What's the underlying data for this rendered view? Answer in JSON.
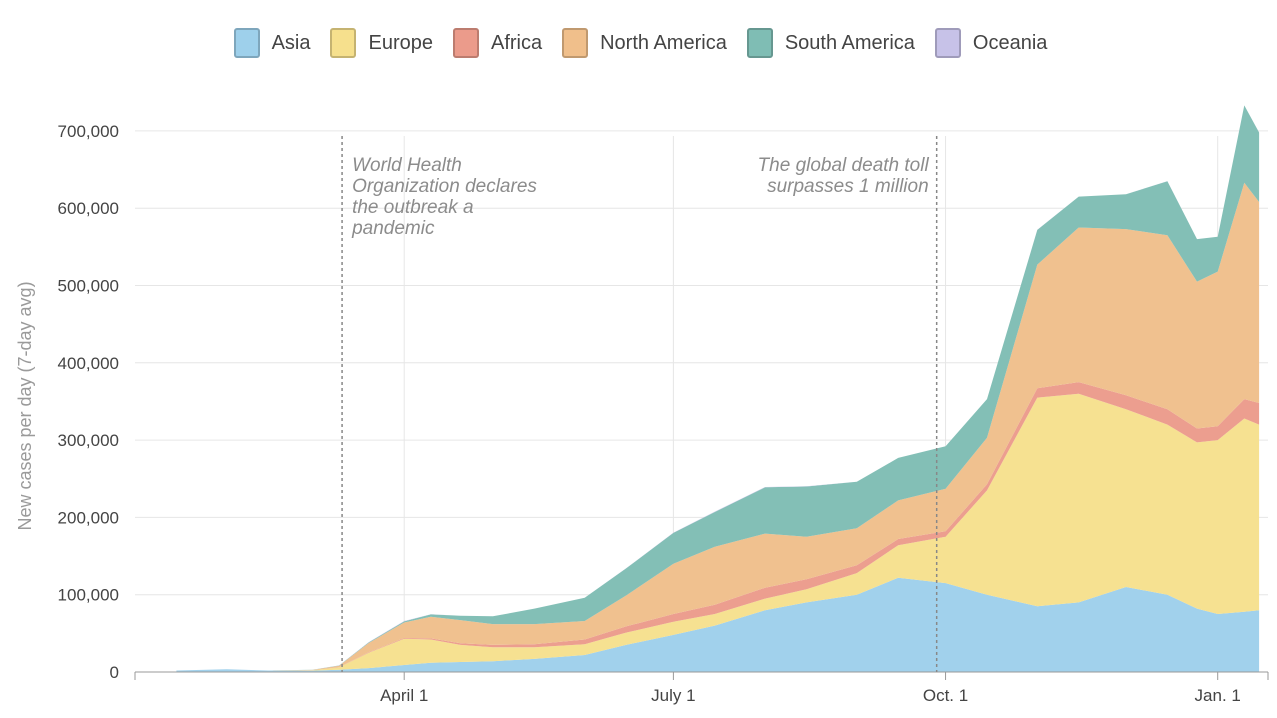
{
  "chart_data": {
    "type": "area",
    "stacked": true,
    "title": "",
    "xlabel": "",
    "ylabel": "New cases per day (7-day avg)",
    "ylim": [
      0,
      740000
    ],
    "yticks": [
      0,
      100000,
      200000,
      300000,
      400000,
      500000,
      600000,
      700000
    ],
    "ytick_labels": [
      "0",
      "100,000",
      "200,000",
      "300,000",
      "400,000",
      "500,000",
      "600,000",
      "700,000"
    ],
    "xlim": [
      "2020-01-01",
      "2021-01-18"
    ],
    "xticks": [
      {
        "date": "2020-04-01",
        "label": "April 1"
      },
      {
        "date": "2020-07-01",
        "label": "July 1"
      },
      {
        "date": "2020-10-01",
        "label": "Oct. 1"
      },
      {
        "date": "2021-01-01",
        "label": "Jan. 1"
      }
    ],
    "grid": true,
    "legend_position": "top",
    "dates": [
      "2020-01-15",
      "2020-02-01",
      "2020-02-15",
      "2020-03-01",
      "2020-03-10",
      "2020-03-20",
      "2020-04-01",
      "2020-04-10",
      "2020-04-20",
      "2020-05-01",
      "2020-05-15",
      "2020-06-01",
      "2020-06-15",
      "2020-07-01",
      "2020-07-15",
      "2020-08-01",
      "2020-08-15",
      "2020-09-01",
      "2020-09-15",
      "2020-10-01",
      "2020-10-15",
      "2020-11-01",
      "2020-11-15",
      "2020-12-01",
      "2020-12-15",
      "2020-12-25",
      "2021-01-01",
      "2021-01-10",
      "2021-01-15"
    ],
    "series": [
      {
        "name": "Asia",
        "color": "#9ed0eb",
        "values": [
          2000,
          3500,
          2000,
          1800,
          3000,
          5000,
          9000,
          12000,
          13000,
          14000,
          17000,
          22000,
          35000,
          48000,
          60000,
          80000,
          90000,
          100000,
          122000,
          115000,
          100000,
          85000,
          90000,
          110000,
          100000,
          82000,
          75000,
          78000,
          80000
        ]
      },
      {
        "name": "Europe",
        "color": "#f6e08d",
        "values": [
          0,
          0,
          0,
          400,
          3000,
          20000,
          34000,
          30000,
          22000,
          18000,
          15000,
          14000,
          16000,
          17000,
          15000,
          15000,
          17000,
          28000,
          42000,
          60000,
          135000,
          270000,
          270000,
          230000,
          220000,
          215000,
          225000,
          250000,
          240000
        ]
      },
      {
        "name": "Africa",
        "color": "#eb9b8b",
        "values": [
          0,
          0,
          0,
          100,
          200,
          500,
          1000,
          1500,
          2200,
          3000,
          4000,
          6000,
          8000,
          10000,
          12000,
          14000,
          13000,
          10000,
          8000,
          7000,
          8000,
          12000,
          15000,
          18000,
          20000,
          18000,
          18000,
          25000,
          28000
        ]
      },
      {
        "name": "North America",
        "color": "#f0bf8b",
        "values": [
          0,
          0,
          0,
          400,
          2000,
          12000,
          20000,
          28000,
          30000,
          27000,
          26000,
          24000,
          40000,
          65000,
          75000,
          70000,
          55000,
          48000,
          50000,
          55000,
          60000,
          160000,
          200000,
          215000,
          225000,
          190000,
          200000,
          280000,
          260000
        ]
      },
      {
        "name": "South America",
        "color": "#7fbdb4",
        "values": [
          0,
          0,
          0,
          100,
          200,
          800,
          1500,
          3000,
          5500,
          10000,
          20000,
          30000,
          35000,
          40000,
          45000,
          60000,
          65000,
          60000,
          55000,
          55000,
          50000,
          45000,
          40000,
          45000,
          70000,
          55000,
          45000,
          100000,
          90000
        ]
      },
      {
        "name": "Oceania",
        "color": "#c7c2e8",
        "values": [
          0,
          0,
          0,
          100,
          200,
          400,
          500,
          300,
          100,
          50,
          30,
          50,
          150,
          300,
          500,
          400,
          200,
          50,
          30,
          20,
          30,
          30,
          30,
          50,
          80,
          60,
          50,
          60,
          60
        ]
      }
    ],
    "annotations": [
      {
        "date": "2020-03-11",
        "text_lines": [
          "World Health",
          "Organization declares",
          "the outbreak a",
          "pandemic"
        ],
        "align": "left"
      },
      {
        "date": "2020-09-28",
        "text_lines": [
          "The global death toll",
          "surpasses 1 million"
        ],
        "align": "right"
      }
    ]
  }
}
